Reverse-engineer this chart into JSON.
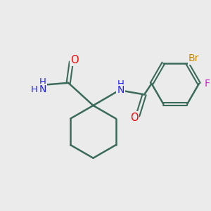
{
  "background_color": "#ebebeb",
  "bond_color": "#3a6b5a",
  "atom_colors": {
    "O": "#ff0000",
    "N": "#2020ff",
    "Br": "#cc8800",
    "F": "#cc22cc",
    "C": "#3a6b5a",
    "H": "#3a6b5a"
  },
  "figsize": [
    3.0,
    3.0
  ],
  "dpi": 100
}
